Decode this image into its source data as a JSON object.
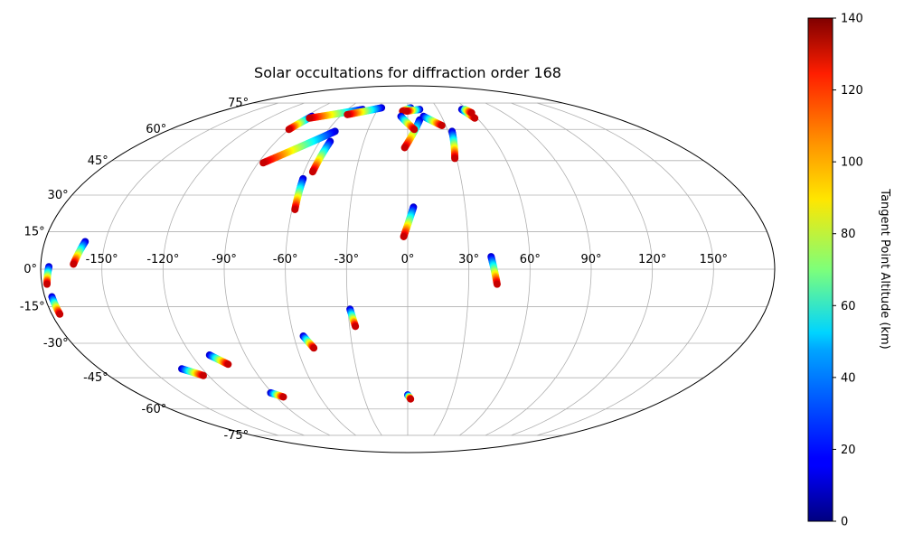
{
  "chart_data": {
    "type": "scatter",
    "projection": "mollweide",
    "title": "Solar occultations for diffraction order 168",
    "grid": true,
    "lon_ticks": [
      -150,
      -120,
      -90,
      -60,
      -30,
      0,
      30,
      60,
      90,
      120,
      150
    ],
    "lat_ticks": [
      -75,
      -60,
      -45,
      -30,
      -15,
      0,
      15,
      30,
      45,
      60,
      75
    ],
    "colorbar": {
      "label": "Tangent Point Altitude (km)",
      "range": [
        0,
        140
      ],
      "ticks": [
        0,
        20,
        40,
        60,
        80,
        100,
        120,
        140
      ],
      "colormap": "jet"
    },
    "series": [
      {
        "lon_start": -176,
        "lat_start": 1,
        "alt_start": 10,
        "lon_end": -177.5,
        "lat_end": -6,
        "alt_end": 130
      },
      {
        "lon_start": -176.5,
        "lat_start": -11,
        "alt_start": 10,
        "lon_end": -176,
        "lat_end": -18,
        "alt_end": 130
      },
      {
        "lon_start": -160,
        "lat_start": 11,
        "alt_start": 10,
        "lon_end": -164,
        "lat_end": 2,
        "alt_end": 130
      },
      {
        "lon_start": -85,
        "lat_start": 67,
        "alt_start": 10,
        "lon_end": -90,
        "lat_end": 60,
        "alt_end": 130
      },
      {
        "lon_start": -45,
        "lat_start": 71,
        "alt_start": 10,
        "lon_end": -85,
        "lat_end": 66,
        "alt_end": 130
      },
      {
        "lon_start": -27,
        "lat_start": 72,
        "alt_start": 10,
        "lon_end": -55,
        "lat_end": 68,
        "alt_end": 130
      },
      {
        "lon_start": -54,
        "lat_start": 59,
        "alt_start": 10,
        "lon_end": -87,
        "lat_end": 44,
        "alt_end": 130
      },
      {
        "lon_start": -53,
        "lat_start": 54,
        "alt_start": 10,
        "lon_end": -55,
        "lat_end": 40,
        "alt_end": 130
      },
      {
        "lon_start": -59,
        "lat_start": 37,
        "alt_start": 10,
        "lon_end": -58.5,
        "lat_end": 24,
        "alt_end": 130
      },
      {
        "lon_start": 3,
        "lat_start": 72,
        "alt_start": 10,
        "lon_end": -5,
        "lat_end": 70,
        "alt_end": 130
      },
      {
        "lon_start": 12,
        "lat_start": 71,
        "alt_start": 10,
        "lon_end": -1,
        "lat_end": 70,
        "alt_end": 130
      },
      {
        "lon_start": 10,
        "lat_start": 65,
        "alt_start": 10,
        "lon_end": -2,
        "lat_end": 51,
        "alt_end": 130
      },
      {
        "lon_start": -6,
        "lat_start": 67,
        "alt_start": 10,
        "lon_end": 5,
        "lat_end": 60,
        "alt_end": 130
      },
      {
        "lon_start": 14,
        "lat_start": 67,
        "alt_start": 10,
        "lon_end": 27,
        "lat_end": 62,
        "alt_end": 130
      },
      {
        "lon_start": 33,
        "lat_start": 59,
        "alt_start": 10,
        "lon_end": 29,
        "lat_end": 46,
        "alt_end": 130
      },
      {
        "lon_start": 54,
        "lat_start": 71,
        "alt_start": 10,
        "lon_end": 58,
        "lat_end": 66,
        "alt_end": 130
      },
      {
        "lon_start": 57,
        "lat_start": 71,
        "alt_start": 60,
        "lon_end": 60,
        "lat_end": 69,
        "alt_end": 130
      },
      {
        "lon_start": 3,
        "lat_start": 25,
        "alt_start": 10,
        "lon_end": -2,
        "lat_end": 13,
        "alt_end": 130
      },
      {
        "lon_start": 41,
        "lat_start": 5,
        "alt_start": 10,
        "lon_end": 44,
        "lat_end": -6,
        "alt_end": 130
      },
      {
        "lon_start": -29,
        "lat_start": -16,
        "alt_start": 10,
        "lon_end": -27,
        "lat_end": -23,
        "alt_end": 130
      },
      {
        "lon_start": -55,
        "lat_start": -27,
        "alt_start": 10,
        "lon_end": -51,
        "lat_end": -32,
        "alt_end": 130
      },
      {
        "lon_start": -110,
        "lat_start": -35,
        "alt_start": 10,
        "lon_end": -103,
        "lat_end": -39,
        "alt_end": 130
      },
      {
        "lon_start": -132,
        "lat_start": -41,
        "alt_start": 10,
        "lon_end": -123,
        "lat_end": -44,
        "alt_end": 130
      },
      {
        "lon_start": -91,
        "lat_start": -52,
        "alt_start": 10,
        "lon_end": -85,
        "lat_end": -54,
        "alt_end": 130
      },
      {
        "lon_start": 0,
        "lat_start": -53,
        "alt_start": 10,
        "lon_end": 2,
        "lat_end": -55,
        "alt_end": 130
      }
    ]
  }
}
